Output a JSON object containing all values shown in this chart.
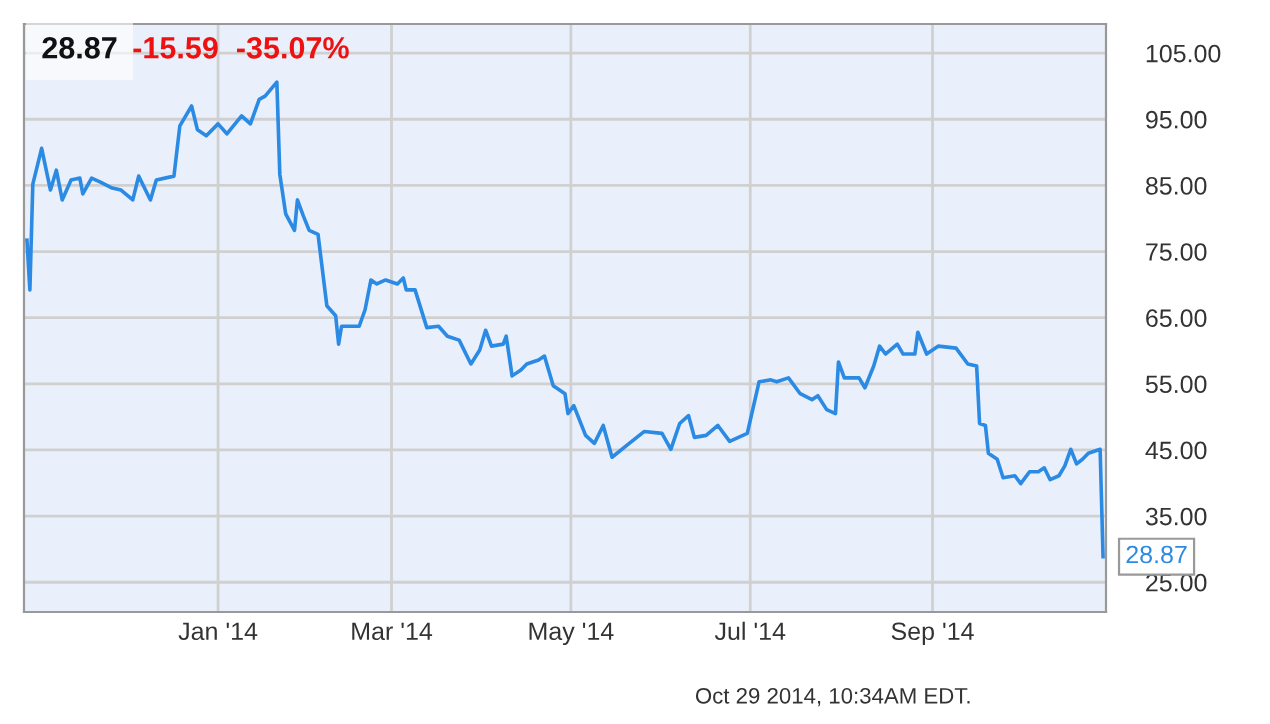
{
  "chart_data": {
    "type": "line",
    "title": "28.87",
    "subtitle": "-15.59  -35.07%",
    "annotations": [
      {
        "text": "28.87",
        "x": "2014-10-29",
        "y": 28.87
      },
      "Oct 29 2014, 10:34AM EDT."
    ],
    "x": [
      "2013-10-28",
      "2013-10-29",
      "2013-10-30",
      "2013-11-02",
      "2013-11-05",
      "2013-11-07",
      "2013-11-09",
      "2013-11-12",
      "2013-11-15",
      "2013-11-16",
      "2013-11-19",
      "2013-11-22",
      "2013-11-26",
      "2013-11-29",
      "2013-12-03",
      "2013-12-05",
      "2013-12-09",
      "2013-12-11",
      "2013-12-17",
      "2013-12-19",
      "2013-12-23",
      "2013-12-25",
      "2013-12-28",
      "2014-01-01",
      "2014-01-04",
      "2014-01-09",
      "2014-01-12",
      "2014-01-15",
      "2014-01-17",
      "2014-01-21",
      "2014-01-22",
      "2014-01-24",
      "2014-01-27",
      "2014-01-28",
      "2014-01-30",
      "2014-02-01",
      "2014-02-04",
      "2014-02-07",
      "2014-02-10",
      "2014-02-11",
      "2014-02-12",
      "2014-02-18",
      "2014-02-20",
      "2014-02-22",
      "2014-02-24",
      "2014-02-27",
      "2014-03-03",
      "2014-03-05",
      "2014-03-06",
      "2014-03-09",
      "2014-03-13",
      "2014-03-17",
      "2014-03-20",
      "2014-03-24",
      "2014-03-28",
      "2014-03-31",
      "2014-04-02",
      "2014-04-04",
      "2014-04-08",
      "2014-04-09",
      "2014-04-11",
      "2014-04-14",
      "2014-04-16",
      "2014-04-20",
      "2014-04-22",
      "2014-04-25",
      "2014-04-29",
      "2014-04-30",
      "2014-05-02",
      "2014-05-06",
      "2014-05-09",
      "2014-05-12",
      "2014-05-15",
      "2014-05-20",
      "2014-05-26",
      "2014-06-01",
      "2014-06-04",
      "2014-06-07",
      "2014-06-10",
      "2014-06-12",
      "2014-06-16",
      "2014-06-20",
      "2014-06-24",
      "2014-06-30",
      "2014-07-04",
      "2014-07-08",
      "2014-07-10",
      "2014-07-14",
      "2014-07-18",
      "2014-07-22",
      "2014-07-24",
      "2014-07-27",
      "2014-07-30",
      "2014-07-31",
      "2014-08-02",
      "2014-08-07",
      "2014-08-09",
      "2014-08-12",
      "2014-08-14",
      "2014-08-16",
      "2014-08-20",
      "2014-08-22",
      "2014-08-26",
      "2014-08-27",
      "2014-08-30",
      "2014-09-03",
      "2014-09-09",
      "2014-09-13",
      "2014-09-16",
      "2014-09-17",
      "2014-09-19",
      "2014-09-20",
      "2014-09-23",
      "2014-09-25",
      "2014-09-29",
      "2014-10-01",
      "2014-10-04",
      "2014-10-07",
      "2014-10-09",
      "2014-10-11",
      "2014-10-14",
      "2014-10-16",
      "2014-10-18",
      "2014-10-20",
      "2014-10-22",
      "2014-10-24",
      "2014-10-28",
      "2014-10-29"
    ],
    "series": [
      {
        "color": "#2b8ae3",
        "values": [
          76.7,
          69.2,
          85.2,
          90.6,
          84.3,
          87.3,
          82.8,
          85.8,
          86.1,
          83.7,
          86.1,
          85.5,
          84.6,
          84.3,
          82.8,
          86.4,
          82.8,
          85.8,
          86.4,
          94.0,
          97.0,
          93.4,
          92.5,
          94.3,
          92.8,
          95.5,
          94.3,
          98.0,
          98.5,
          100.6,
          86.7,
          80.7,
          78.2,
          82.8,
          80.4,
          78.2,
          77.6,
          66.8,
          65.3,
          61.0,
          63.7,
          63.7,
          66.2,
          70.7,
          70.1,
          70.7,
          70.1,
          71.0,
          69.2,
          69.2,
          63.5,
          63.7,
          62.2,
          61.6,
          58.0,
          60.1,
          63.1,
          60.7,
          61.0,
          62.2,
          56.2,
          57.1,
          58.0,
          58.6,
          59.2,
          54.7,
          53.5,
          50.5,
          51.7,
          47.2,
          46.0,
          48.7,
          43.9,
          45.7,
          47.8,
          47.5,
          45.1,
          49.0,
          50.2,
          46.9,
          47.2,
          48.7,
          46.3,
          47.5,
          55.3,
          55.6,
          55.3,
          55.9,
          53.5,
          52.6,
          53.2,
          51.1,
          50.5,
          58.3,
          55.9,
          55.9,
          54.4,
          57.7,
          60.7,
          59.5,
          61.0,
          59.5,
          59.5,
          62.8,
          59.5,
          60.7,
          60.4,
          58.0,
          57.7,
          49.0,
          48.7,
          44.5,
          43.6,
          40.8,
          41.1,
          39.9,
          41.7,
          41.7,
          42.3,
          40.5,
          41.1,
          42.6,
          45.1,
          42.9,
          43.6,
          44.5,
          45.1,
          28.87
        ]
      }
    ],
    "xlim": [
      "2013-10-27",
      "2014-10-30"
    ],
    "xticks": [
      {
        "value": "2014-01-01",
        "label": "Jan '14"
      },
      {
        "value": "2014-03-01",
        "label": "Mar '14"
      },
      {
        "value": "2014-05-01",
        "label": "May '14"
      },
      {
        "value": "2014-07-01",
        "label": "Jul '14"
      },
      {
        "value": "2014-09-01",
        "label": "Sep '14"
      }
    ],
    "ylim": [
      20.5,
      109.4
    ],
    "yticks": [
      {
        "value": 25,
        "label": "25.00"
      },
      {
        "value": 35,
        "label": "35.00"
      },
      {
        "value": 45,
        "label": "45.00"
      },
      {
        "value": 55,
        "label": "55.00"
      },
      {
        "value": 65,
        "label": "65.00"
      },
      {
        "value": 75,
        "label": "75.00"
      },
      {
        "value": 85,
        "label": "85.00"
      },
      {
        "value": 95,
        "label": "95.00"
      },
      {
        "value": 105,
        "label": "105.00"
      }
    ],
    "grid": true,
    "legend": false,
    "marker": "none",
    "line_style": "solid"
  }
}
